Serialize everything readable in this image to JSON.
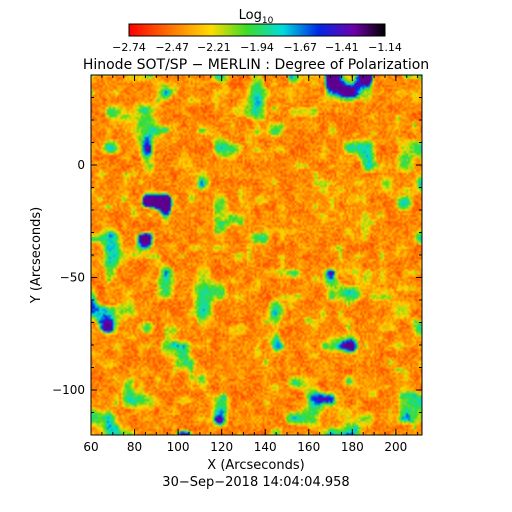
{
  "chart_data": {
    "type": "heatmap",
    "title": "Hinode SOT/SP − MERLIN : Degree of Polarization",
    "xlabel": "X (Arcseconds)",
    "ylabel": "Y (Arcseconds)",
    "xlim": [
      60,
      212
    ],
    "ylim": [
      -120,
      40
    ],
    "x_ticks": [
      60,
      80,
      100,
      120,
      140,
      160,
      180,
      200
    ],
    "y_ticks": [
      0,
      -50,
      -100
    ],
    "x_tick_labels": [
      "60",
      "80",
      "100",
      "120",
      "140",
      "160",
      "180",
      "200"
    ],
    "y_tick_labels": [
      "0",
      "−50",
      "−100"
    ],
    "colorbar": {
      "label_base": "Log",
      "label_sub": "10",
      "range": [
        -2.74,
        -1.14
      ],
      "ticks": [
        -2.74,
        -2.47,
        -2.21,
        -1.94,
        -1.67,
        -1.41,
        -1.14
      ],
      "tick_labels": [
        "−2.74",
        "−2.47",
        "−2.21",
        "−1.94",
        "−1.67",
        "−1.41",
        "−1.14"
      ],
      "colormap": "rainbow (red → yellow → green → cyan → blue → purple → black)"
    },
    "value_distribution": "mostly red/orange (≈ -2.6) with yellow-green network and scattered blue patches",
    "timestamp": "30−Sep−2018 14:04:04.958"
  }
}
